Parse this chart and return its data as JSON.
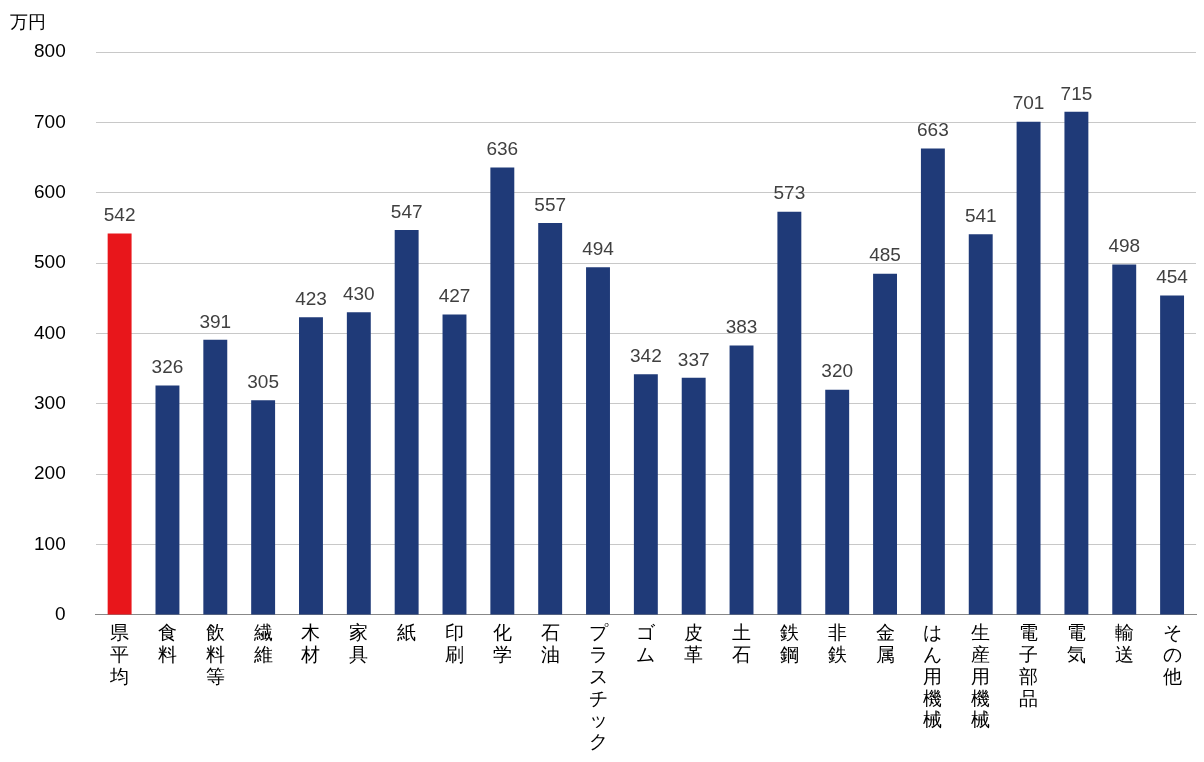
{
  "chart_data": {
    "type": "bar",
    "ylabel": "万円",
    "categories": [
      "県平均",
      "食料",
      "飲料等",
      "繊維",
      "木材",
      "家具",
      "紙",
      "印刷",
      "化学",
      "石油",
      "プラスチック",
      "ゴム",
      "皮革",
      "土石",
      "鉄鋼",
      "非鉄",
      "金属",
      "はん用機械",
      "生産用機械",
      "電子部品",
      "電気",
      "輸送",
      "その他"
    ],
    "values": [
      542,
      326,
      391,
      305,
      423,
      430,
      547,
      427,
      636,
      557,
      494,
      342,
      337,
      383,
      573,
      320,
      485,
      663,
      541,
      701,
      715,
      498,
      454
    ],
    "colors": [
      "#e8161b",
      "#1f3a78",
      "#1f3a78",
      "#1f3a78",
      "#1f3a78",
      "#1f3a78",
      "#1f3a78",
      "#1f3a78",
      "#1f3a78",
      "#1f3a78",
      "#1f3a78",
      "#1f3a78",
      "#1f3a78",
      "#1f3a78",
      "#1f3a78",
      "#1f3a78",
      "#1f3a78",
      "#1f3a78",
      "#1f3a78",
      "#1f3a78",
      "#1f3a78",
      "#1f3a78",
      "#1f3a78"
    ],
    "ylim": [
      0,
      800
    ],
    "yticks": [
      0,
      100,
      200,
      300,
      400,
      500,
      600,
      700,
      800
    ],
    "grid": "y",
    "legend": false,
    "data_labels": true
  }
}
